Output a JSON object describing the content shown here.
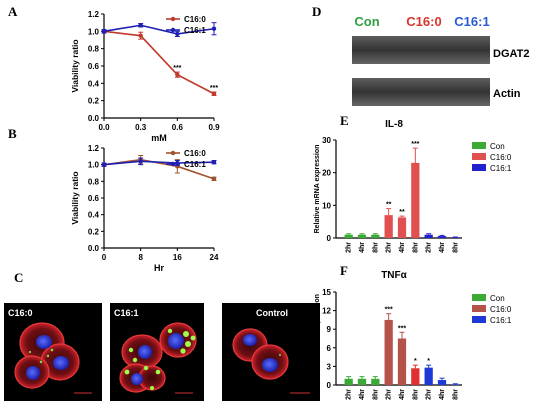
{
  "panel_labels": [
    "A",
    "B",
    "C",
    "D",
    "E",
    "F"
  ],
  "chart_data": [
    {
      "panel": "A",
      "type": "line",
      "xlabel": "mM",
      "ylabel": "Viability ratio",
      "x": [
        0.0,
        0.3,
        0.6,
        0.9
      ],
      "xticks": [
        "0.0",
        "0.3",
        "0.6",
        "0.9"
      ],
      "yticks": [
        "0.0",
        "0.2",
        "0.4",
        "0.6",
        "0.8",
        "1.0",
        "1.2"
      ],
      "ylim": [
        0,
        1.2
      ],
      "xlim": [
        0,
        0.9
      ],
      "series": [
        {
          "name": "C16:0",
          "color": "#c0392b",
          "values": [
            1.0,
            0.95,
            0.5,
            0.28
          ],
          "err": [
            0.02,
            0.04,
            0.03,
            0.02
          ],
          "sig": [
            "",
            "",
            "***",
            "***"
          ]
        },
        {
          "name": "C16:1",
          "color": "#1f1fb4",
          "values": [
            1.0,
            1.07,
            0.97,
            1.03
          ],
          "err": [
            0.02,
            0.02,
            0.03,
            0.07
          ],
          "sig": [
            "",
            "",
            "",
            ""
          ]
        }
      ],
      "legend": "top-right"
    },
    {
      "panel": "B",
      "type": "line",
      "xlabel": "Hr",
      "ylabel": "Viability ratio",
      "x": [
        0,
        8,
        16,
        24
      ],
      "xticks": [
        "0",
        "8",
        "16",
        "24"
      ],
      "yticks": [
        "0.0",
        "0.2",
        "0.4",
        "0.6",
        "0.8",
        "1.0",
        "1.2"
      ],
      "ylim": [
        0,
        1.2
      ],
      "xlim": [
        0,
        24
      ],
      "series": [
        {
          "name": "C16:0",
          "color": "#a0522d",
          "values": [
            1.0,
            1.06,
            0.98,
            0.83
          ],
          "err": [
            0.02,
            0.05,
            0.08,
            0.02
          ]
        },
        {
          "name": "C16:1",
          "color": "#1f1fb4",
          "values": [
            1.0,
            1.04,
            1.02,
            1.03
          ],
          "err": [
            0.02,
            0.04,
            0.03,
            0.02
          ]
        }
      ],
      "legend": "top-right"
    },
    {
      "panel": "E",
      "type": "bar",
      "title": "IL-8",
      "ylabel": "Relative mRNA expression",
      "categories": [
        "2hr",
        "4hr",
        "8hr",
        "2hr",
        "4hr",
        "8hr",
        "2hr",
        "4hr",
        "8hr"
      ],
      "ylim": [
        0,
        30
      ],
      "yticks": [
        "0",
        "10",
        "20",
        "30"
      ],
      "groups": [
        {
          "name": "Con",
          "color": "#3aaa35",
          "values": [
            1.0,
            1.0,
            1.0
          ],
          "err": [
            0.3,
            0.3,
            0.3
          ],
          "sig": [
            "",
            "",
            ""
          ]
        },
        {
          "name": "C16:0",
          "color": "#e05050",
          "values": [
            7.0,
            6.3,
            23.0
          ],
          "err": [
            2.0,
            0.4,
            4.5
          ],
          "sig": [
            "**",
            "**",
            "***"
          ]
        },
        {
          "name": "C16:1",
          "color": "#2222cc",
          "values": [
            1.0,
            0.6,
            0.2
          ],
          "err": [
            0.3,
            0.2,
            0.1
          ],
          "sig": [
            "",
            "",
            ""
          ]
        }
      ],
      "legend": "top-right"
    },
    {
      "panel": "F",
      "type": "bar",
      "title": "TNFα",
      "ylabel": "Relative mRNA expression",
      "categories": [
        "2hr",
        "4hr",
        "8hr",
        "2hr",
        "4hr",
        "8hr",
        "2hr",
        "4hr",
        "8hr"
      ],
      "ylim": [
        0,
        15
      ],
      "yticks": [
        "0",
        "3",
        "6",
        "9",
        "12",
        "15"
      ],
      "groups": [
        {
          "name": "Con",
          "color": "#3aaa35",
          "values": [
            1.0,
            1.0,
            1.0
          ],
          "err": [
            0.35,
            0.35,
            0.35
          ],
          "sig": [
            "",
            "",
            ""
          ]
        },
        {
          "name": "C16:0",
          "color": "#b5524a",
          "colors": [
            "#b5524a",
            "#b5524a",
            "#e03030"
          ],
          "values": [
            10.5,
            7.5,
            2.7
          ],
          "err": [
            1.0,
            1.0,
            0.5
          ],
          "sig": [
            "***",
            "***",
            "*"
          ]
        },
        {
          "name": "C16:1",
          "color": "#1e3ad6",
          "values": [
            2.8,
            0.8,
            0.1
          ],
          "err": [
            0.4,
            0.3,
            0.1
          ],
          "sig": [
            "*",
            "",
            ""
          ]
        }
      ],
      "legend": "top-right"
    }
  ],
  "panelC": {
    "images": [
      {
        "label": "C16:0"
      },
      {
        "label": "C16:1"
      },
      {
        "label": "Control"
      }
    ]
  },
  "panelD": {
    "headers": [
      {
        "label": "Con",
        "color": "#2ea043"
      },
      {
        "label": "C16:0",
        "color": "#d9362b"
      },
      {
        "label": "C16:1",
        "color": "#2a5bd7"
      }
    ],
    "rows": [
      {
        "label": "DGAT2"
      },
      {
        "label": "Actin"
      }
    ]
  }
}
